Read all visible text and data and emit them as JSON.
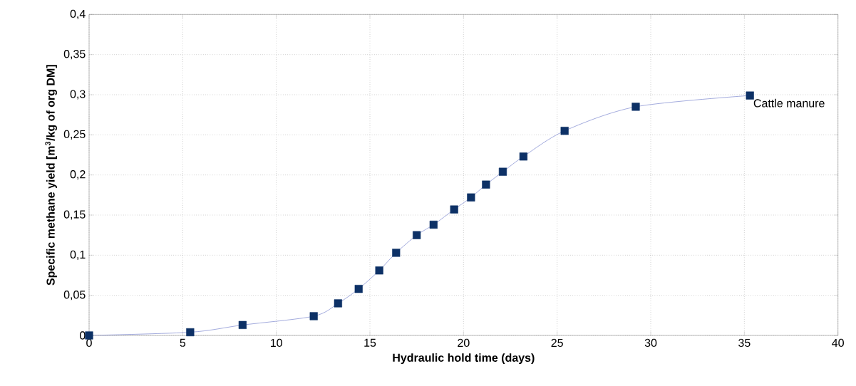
{
  "chart_data": {
    "type": "line",
    "xlabel": "Hydraulic hold time (days)",
    "ylabel": "Specific methane yield [m$^{3}$/kg of org DM]",
    "series": [
      {
        "name": "Cattle manure",
        "color": "#0d3166",
        "x": [
          0,
          5.4,
          8.2,
          12.0,
          13.3,
          14.4,
          15.5,
          16.4,
          17.5,
          18.4,
          19.5,
          20.4,
          21.2,
          22.1,
          23.2,
          25.4,
          29.2,
          35.3
        ],
        "values": [
          0,
          0.004,
          0.013,
          0.024,
          0.04,
          0.058,
          0.081,
          0.103,
          0.125,
          0.138,
          0.157,
          0.172,
          0.188,
          0.204,
          0.223,
          0.255,
          0.285,
          0.299
        ]
      }
    ],
    "xlim": [
      0,
      40
    ],
    "ylim": [
      0,
      0.4
    ],
    "xticks": [
      0,
      5,
      10,
      15,
      20,
      25,
      30,
      35,
      40
    ],
    "yticks": [
      0,
      {
        "value": 0.05,
        "label": "0,05"
      },
      {
        "value": 0.1,
        "label": "0,1"
      },
      {
        "value": 0.15,
        "label": "0,15"
      },
      {
        "value": 0.2,
        "label": "0,2"
      },
      {
        "value": 0.25,
        "label": "0,25"
      },
      {
        "value": 0.3,
        "label": "0,3"
      },
      {
        "value": 0.35,
        "label": "0,35"
      },
      {
        "value": 0.4,
        "label": "0,4"
      }
    ],
    "grid": true,
    "legend": false,
    "marker": "square",
    "line_style": "solid"
  }
}
